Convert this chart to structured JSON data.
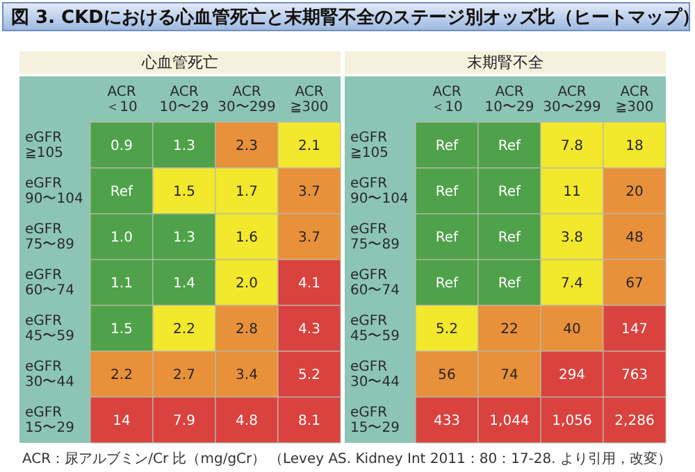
{
  "chart_data": [
    {
      "type": "heatmap",
      "title": "図 3. CKDにおける心血管死亡と末期腎不全のステージ別オッズ比（ヒートマップ）",
      "subtitle": "心血管死亡",
      "categories": [
        "ACR ＜10",
        "ACR 10〜29",
        "ACR 30〜299",
        "ACR ≧300"
      ],
      "y_categories": [
        "eGFR ≧105",
        "eGFR 90〜104",
        "eGFR 75〜89",
        "eGFR 60〜74",
        "eGFR 45〜59",
        "eGFR 30〜44",
        "eGFR 15〜29"
      ],
      "cells": [
        [
          0.9,
          1.3,
          2.3,
          2.1
        ],
        [
          null,
          1.5,
          1.7,
          3.7
        ],
        [
          1.0,
          1.3,
          1.6,
          3.7
        ],
        [
          1.1,
          1.4,
          2.0,
          4.1
        ],
        [
          1.5,
          2.2,
          2.8,
          4.3
        ],
        [
          2.2,
          2.7,
          3.4,
          5.2
        ],
        [
          14,
          7.9,
          4.8,
          8.1
        ]
      ],
      "cell_labels": [
        [
          "0.9",
          "1.3",
          "2.3",
          "2.1"
        ],
        [
          "Ref",
          "1.5",
          "1.7",
          "3.7"
        ],
        [
          "1.0",
          "1.3",
          "1.6",
          "3.7"
        ],
        [
          "1.1",
          "1.4",
          "2.0",
          "4.1"
        ],
        [
          "1.5",
          "2.2",
          "2.8",
          "4.3"
        ],
        [
          "2.2",
          "2.7",
          "3.4",
          "5.2"
        ],
        [
          "14",
          "7.9",
          "4.8",
          "8.1"
        ]
      ],
      "colors": [
        [
          "#4fa24a",
          "#4fa24a",
          "#e8913a",
          "#f2e82c"
        ],
        [
          "#4fa24a",
          "#f2e82c",
          "#f2e82c",
          "#e8913a"
        ],
        [
          "#4fa24a",
          "#4fa24a",
          "#f2e82c",
          "#e8913a"
        ],
        [
          "#4fa24a",
          "#4fa24a",
          "#f2e82c",
          "#d9423e"
        ],
        [
          "#4fa24a",
          "#f2e82c",
          "#e8913a",
          "#d9423e"
        ],
        [
          "#e8913a",
          "#e8913a",
          "#e8913a",
          "#d9423e"
        ],
        [
          "#d9423e",
          "#d9423e",
          "#d9423e",
          "#d9423e"
        ]
      ],
      "annotations": [
        "ACR：尿アルブミン/Cr 比（mg/gCr）"
      ]
    },
    {
      "type": "heatmap",
      "subtitle": "末期腎不全",
      "categories": [
        "ACR ＜10",
        "ACR 10〜29",
        "ACR 30〜299",
        "ACR ≧300"
      ],
      "y_categories": [
        "eGFR ≧105",
        "eGFR 90〜104",
        "eGFR 75〜89",
        "eGFR 60〜74",
        "eGFR 45〜59",
        "eGFR 30〜44",
        "eGFR 15〜29"
      ],
      "cells": [
        [
          null,
          null,
          7.8,
          18
        ],
        [
          null,
          null,
          11,
          20
        ],
        [
          null,
          null,
          3.8,
          48
        ],
        [
          null,
          null,
          7.4,
          67
        ],
        [
          5.2,
          22,
          40,
          147
        ],
        [
          56,
          74,
          294,
          763
        ],
        [
          433,
          1044,
          1056,
          2286
        ]
      ],
      "cell_labels": [
        [
          "Ref",
          "Ref",
          "7.8",
          "18"
        ],
        [
          "Ref",
          "Ref",
          "11",
          "20"
        ],
        [
          "Ref",
          "Ref",
          "3.8",
          "48"
        ],
        [
          "Ref",
          "Ref",
          "7.4",
          "67"
        ],
        [
          "5.2",
          "22",
          "40",
          "147"
        ],
        [
          "56",
          "74",
          "294",
          "763"
        ],
        [
          "433",
          "1,044",
          "1,056",
          "2,286"
        ]
      ],
      "colors": [
        [
          "#4fa24a",
          "#4fa24a",
          "#f2e82c",
          "#f2e82c"
        ],
        [
          "#4fa24a",
          "#4fa24a",
          "#f2e82c",
          "#e8913a"
        ],
        [
          "#4fa24a",
          "#4fa24a",
          "#f2e82c",
          "#e8913a"
        ],
        [
          "#4fa24a",
          "#4fa24a",
          "#f2e82c",
          "#e8913a"
        ],
        [
          "#f2e82c",
          "#e8913a",
          "#e8913a",
          "#d9423e"
        ],
        [
          "#e8913a",
          "#e8913a",
          "#d9423e",
          "#d9423e"
        ],
        [
          "#d9423e",
          "#d9423e",
          "#d9423e",
          "#d9423e"
        ]
      ],
      "annotations": [
        "（Levey AS. Kidney Int 2011：80：17-28. より引用，改変）"
      ]
    }
  ]
}
